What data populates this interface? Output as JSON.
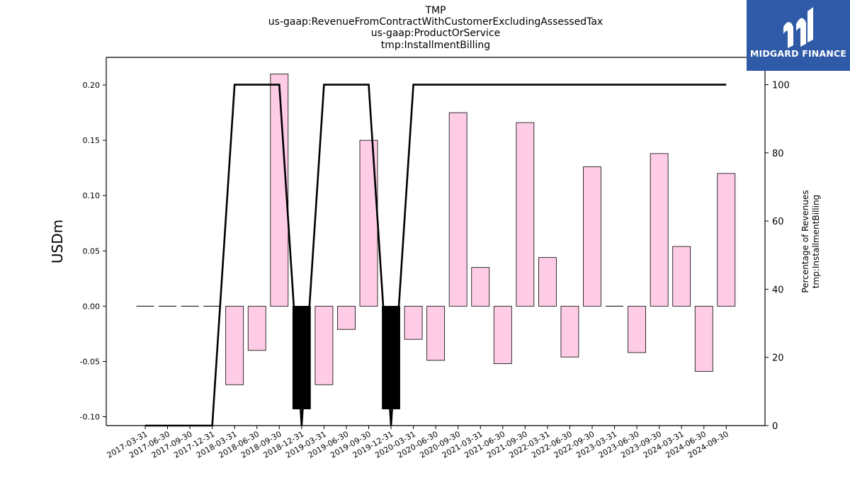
{
  "chart_data": {
    "type": "bar",
    "title_lines": [
      "TMP",
      "us-gaap:RevenueFromContractWithCustomerExcludingAssessedTax",
      "us-gaap:ProductOrService",
      "tmp:InstallmentBilling"
    ],
    "ylabel": "USDm",
    "y2label_lines": [
      "Percentage of Revenues",
      "tmp:InstallmentBilling"
    ],
    "ylim": [
      -0.108,
      0.225
    ],
    "y_ticks": [
      -0.1,
      -0.05,
      0.0,
      0.05,
      0.1,
      0.15,
      0.2
    ],
    "y2lim": [
      0,
      108
    ],
    "y2_ticks": [
      0,
      20,
      40,
      60,
      80,
      100
    ],
    "categories": [
      "2017-03-31",
      "2017-06-30",
      "2017-09-30",
      "2017-12-31",
      "2018-03-31",
      "2018-06-30",
      "2018-09-30",
      "2018-12-31",
      "2019-03-31",
      "2019-06-30",
      "2019-09-30",
      "2019-12-31",
      "2020-03-31",
      "2020-06-30",
      "2020-09-30",
      "2021-03-31",
      "2021-06-30",
      "2021-09-30",
      "2022-03-31",
      "2022-06-30",
      "2022-09-30",
      "2023-03-31",
      "2023-06-30",
      "2023-09-30",
      "2024-03-31",
      "2024-06-30",
      "2024-09-30"
    ],
    "series": [
      {
        "kind": "bar",
        "values": [
          0,
          0,
          0,
          0,
          -0.071,
          -0.04,
          0.21,
          -0.093,
          -0.071,
          -0.021,
          0.15,
          -0.093,
          -0.03,
          -0.049,
          0.175,
          0.035,
          -0.052,
          0.166,
          0.044,
          -0.046,
          0.126,
          0.0005,
          -0.042,
          0.138,
          0.054,
          -0.059,
          0.12
        ],
        "highlight": [
          false,
          false,
          false,
          false,
          false,
          false,
          false,
          true,
          false,
          false,
          false,
          true,
          false,
          false,
          false,
          false,
          false,
          false,
          false,
          false,
          false,
          false,
          false,
          false,
          false,
          false,
          false
        ]
      },
      {
        "kind": "line",
        "axis": "right",
        "values": [
          0,
          0,
          0,
          0,
          100,
          100,
          100,
          0,
          100,
          100,
          100,
          0,
          100,
          100,
          100,
          100,
          100,
          100,
          100,
          100,
          100,
          100,
          100,
          100,
          100,
          100,
          100
        ]
      }
    ],
    "colors": {
      "bar": "#ffcce6",
      "bar_highlight": "#000000",
      "line": "#000000"
    }
  },
  "logo": {
    "text": "MIDGARD FINANCE",
    "background": "#2f5aa8"
  }
}
